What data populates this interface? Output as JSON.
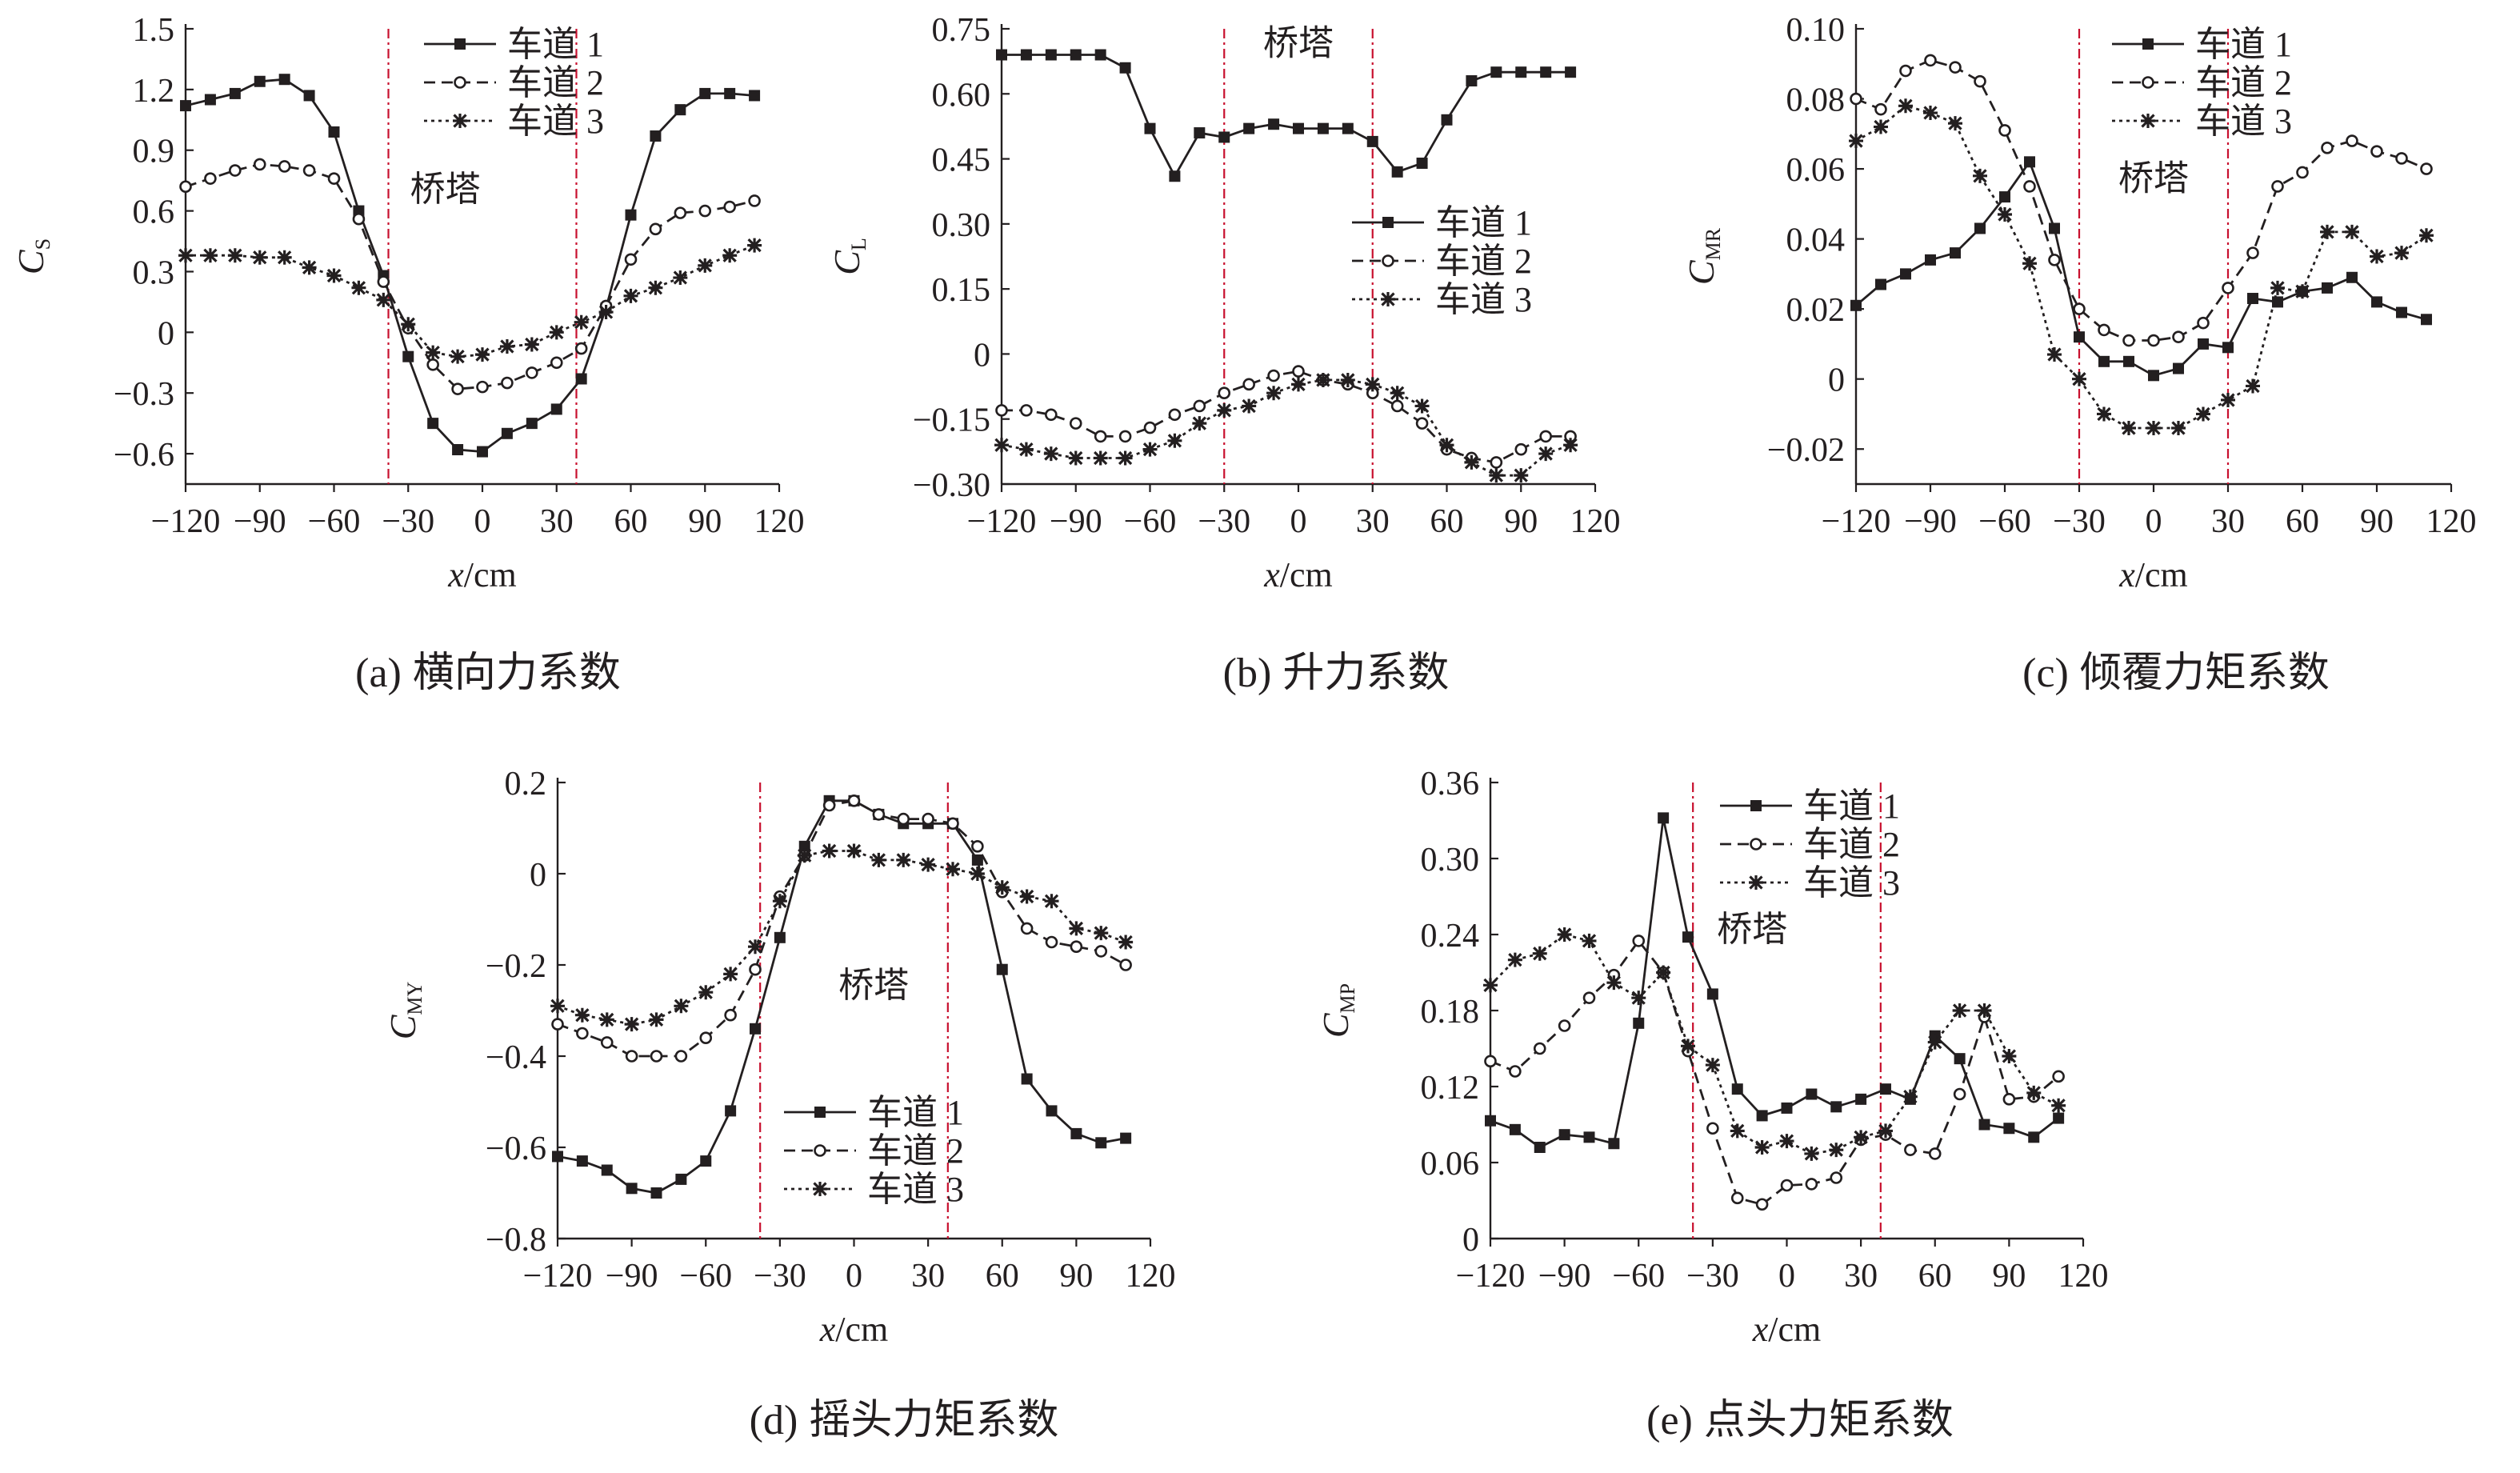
{
  "figure": {
    "panels": [
      {
        "id": "a",
        "caption_letter": "(a)",
        "caption_text": "横向力系数"
      },
      {
        "id": "b",
        "caption_letter": "(b)",
        "caption_text": "升力系数"
      },
      {
        "id": "c",
        "caption_letter": "(c)",
        "caption_text": "倾覆力矩系数"
      },
      {
        "id": "d",
        "caption_letter": "(d)",
        "caption_text": "摇头力矩系数"
      },
      {
        "id": "e",
        "caption_letter": "(e)",
        "caption_text": "点头力矩系数"
      }
    ],
    "tower_label": "桥塔",
    "legend_names": [
      "车道 1",
      "车道 2",
      "车道 3"
    ],
    "x_axis_label": {
      "italic": "x",
      "unit": "/cm"
    },
    "colors": {
      "line": "#231f20",
      "tower_line": "#c8102e",
      "background": "#ffffff"
    }
  },
  "chart_data": [
    {
      "id": "a",
      "type": "line",
      "title": "(a) 横向力系数",
      "xlabel": "x/cm",
      "ylabel": "C_S",
      "ylabel_main": "C",
      "ylabel_sub": "S",
      "xlim": [
        -120,
        120
      ],
      "ylim": [
        -0.75,
        1.5
      ],
      "xticks": [
        -120,
        -90,
        -60,
        -30,
        0,
        30,
        60,
        90,
        120
      ],
      "xtick_labels": [
        "−120",
        "−90",
        "−60",
        "−30",
        "0",
        "30",
        "60",
        "90",
        "120"
      ],
      "yticks": [
        -0.6,
        -0.3,
        0,
        0.3,
        0.6,
        0.9,
        1.2,
        1.5
      ],
      "ytick_labels": [
        "−0.6",
        "−0.3",
        "0",
        "0.3",
        "0.6",
        "0.9",
        "1.2",
        "1.5"
      ],
      "tower_x": [
        -38,
        38
      ],
      "tower_label": "桥塔",
      "tower_label_pos": [
        -15,
        0.65
      ],
      "legend_loc": "top-center",
      "x": [
        -120,
        -110,
        -100,
        -90,
        -80,
        -70,
        -60,
        -50,
        -40,
        -30,
        -20,
        -10,
        0,
        10,
        20,
        30,
        40,
        50,
        60,
        70,
        80,
        90,
        100,
        110
      ],
      "series": [
        {
          "name": "车道 1",
          "marker": "square",
          "dash": "solid",
          "values": [
            1.12,
            1.15,
            1.18,
            1.24,
            1.25,
            1.17,
            0.99,
            0.6,
            0.28,
            -0.12,
            -0.45,
            -0.58,
            -0.59,
            -0.5,
            -0.45,
            -0.38,
            -0.23,
            0.12,
            0.58,
            0.97,
            1.1,
            1.18,
            1.18,
            1.17
          ]
        },
        {
          "name": "车道 2",
          "marker": "circle",
          "dash": "dashed",
          "values": [
            0.72,
            0.76,
            0.8,
            0.83,
            0.82,
            0.8,
            0.76,
            0.56,
            0.25,
            0.02,
            -0.16,
            -0.28,
            -0.27,
            -0.25,
            -0.2,
            -0.15,
            -0.08,
            0.13,
            0.36,
            0.51,
            0.59,
            0.6,
            0.62,
            0.65
          ]
        },
        {
          "name": "车道 3",
          "marker": "star",
          "dash": "dotted",
          "values": [
            0.38,
            0.38,
            0.38,
            0.37,
            0.37,
            0.32,
            0.28,
            0.22,
            0.16,
            0.04,
            -0.1,
            -0.12,
            -0.11,
            -0.07,
            -0.06,
            0.0,
            0.05,
            0.1,
            0.18,
            0.22,
            0.27,
            0.33,
            0.38,
            0.43
          ]
        }
      ]
    },
    {
      "id": "b",
      "type": "line",
      "title": "(b) 升力系数",
      "xlabel": "x/cm",
      "ylabel": "C_L",
      "ylabel_main": "C",
      "ylabel_sub": "L",
      "xlim": [
        -120,
        120
      ],
      "ylim": [
        -0.3,
        0.75
      ],
      "xticks": [
        -120,
        -90,
        -60,
        -30,
        0,
        30,
        60,
        90,
        120
      ],
      "xtick_labels": [
        "−120",
        "−90",
        "−60",
        "−30",
        "0",
        "30",
        "60",
        "90",
        "120"
      ],
      "yticks": [
        -0.3,
        -0.15,
        0,
        0.15,
        0.3,
        0.45,
        0.6,
        0.75
      ],
      "ytick_labels": [
        "−0.30",
        "−0.15",
        "0",
        "0.15",
        "0.30",
        "0.45",
        "0.60",
        "0.75"
      ],
      "tower_x": [
        -30,
        30
      ],
      "tower_label": "桥塔",
      "tower_label_pos": [
        0,
        0.69
      ],
      "legend_loc": "center-right",
      "x": [
        -120,
        -110,
        -100,
        -90,
        -80,
        -70,
        -60,
        -50,
        -40,
        -30,
        -20,
        -10,
        0,
        10,
        20,
        30,
        40,
        50,
        60,
        70,
        80,
        90,
        100,
        110
      ],
      "series": [
        {
          "name": "车道 1",
          "marker": "square",
          "dash": "solid",
          "values": [
            0.69,
            0.69,
            0.69,
            0.69,
            0.69,
            0.66,
            0.52,
            0.41,
            0.51,
            0.5,
            0.52,
            0.53,
            0.52,
            0.52,
            0.52,
            0.49,
            0.42,
            0.44,
            0.54,
            0.63,
            0.65,
            0.65,
            0.65,
            0.65
          ]
        },
        {
          "name": "车道 2",
          "marker": "circle",
          "dash": "dashed",
          "values": [
            -0.13,
            -0.13,
            -0.14,
            -0.16,
            -0.19,
            -0.19,
            -0.17,
            -0.14,
            -0.12,
            -0.09,
            -0.07,
            -0.05,
            -0.04,
            -0.06,
            -0.07,
            -0.09,
            -0.12,
            -0.16,
            -0.22,
            -0.24,
            -0.25,
            -0.22,
            -0.19,
            -0.19
          ]
        },
        {
          "name": "车道 3",
          "marker": "star",
          "dash": "dotted",
          "values": [
            -0.21,
            -0.22,
            -0.23,
            -0.24,
            -0.24,
            -0.24,
            -0.22,
            -0.2,
            -0.16,
            -0.13,
            -0.12,
            -0.09,
            -0.07,
            -0.06,
            -0.06,
            -0.07,
            -0.09,
            -0.12,
            -0.21,
            -0.25,
            -0.28,
            -0.28,
            -0.23,
            -0.21
          ]
        }
      ]
    },
    {
      "id": "c",
      "type": "line",
      "title": "(c) 倾覆力矩系数",
      "xlabel": "x/cm",
      "ylabel": "C_MR",
      "ylabel_main": "C",
      "ylabel_sub": "MR",
      "xlim": [
        -120,
        120
      ],
      "ylim": [
        -0.03,
        0.1
      ],
      "xticks": [
        -120,
        -90,
        -60,
        -30,
        0,
        30,
        60,
        90,
        120
      ],
      "xtick_labels": [
        "−120",
        "−90",
        "−60",
        "−30",
        "0",
        "30",
        "60",
        "90",
        "120"
      ],
      "yticks": [
        -0.02,
        0,
        0.02,
        0.04,
        0.06,
        0.08,
        0.1
      ],
      "ytick_labels": [
        "−0.02",
        "0",
        "0.02",
        "0.04",
        "0.06",
        "0.08",
        "0.10"
      ],
      "tower_x": [
        -30,
        30
      ],
      "tower_label": "桥塔",
      "tower_label_pos": [
        0,
        0.054
      ],
      "legend_loc": "top-right",
      "x": [
        -120,
        -110,
        -100,
        -90,
        -80,
        -70,
        -60,
        -50,
        -40,
        -30,
        -20,
        -10,
        0,
        10,
        20,
        30,
        40,
        50,
        60,
        70,
        80,
        90,
        100,
        110
      ],
      "series": [
        {
          "name": "车道 1",
          "marker": "square",
          "dash": "solid",
          "values": [
            0.021,
            0.027,
            0.03,
            0.034,
            0.036,
            0.043,
            0.052,
            0.062,
            0.043,
            0.012,
            0.005,
            0.005,
            0.001,
            0.003,
            0.01,
            0.009,
            0.023,
            0.022,
            0.025,
            0.026,
            0.029,
            0.022,
            0.019,
            0.017
          ]
        },
        {
          "name": "车道 2",
          "marker": "circle",
          "dash": "dashed",
          "values": [
            0.08,
            0.077,
            0.088,
            0.091,
            0.089,
            0.085,
            0.071,
            0.055,
            0.034,
            0.02,
            0.014,
            0.011,
            0.011,
            0.012,
            0.016,
            0.026,
            0.036,
            0.055,
            0.059,
            0.066,
            0.068,
            0.065,
            0.063,
            0.06
          ]
        },
        {
          "name": "车道 3",
          "marker": "star",
          "dash": "dotted",
          "values": [
            0.068,
            0.072,
            0.078,
            0.076,
            0.073,
            0.058,
            0.047,
            0.033,
            0.007,
            0.0,
            -0.01,
            -0.014,
            -0.014,
            -0.014,
            -0.01,
            -0.006,
            -0.002,
            0.026,
            0.025,
            0.042,
            0.042,
            0.035,
            0.036,
            0.041
          ]
        }
      ]
    },
    {
      "id": "d",
      "type": "line",
      "title": "(d) 摇头力矩系数",
      "xlabel": "x/cm",
      "ylabel": "C_MY",
      "ylabel_main": "C",
      "ylabel_sub": "MY",
      "xlim": [
        -120,
        120
      ],
      "ylim": [
        -0.8,
        0.2
      ],
      "xticks": [
        -120,
        -90,
        -60,
        -30,
        0,
        30,
        60,
        90,
        120
      ],
      "xtick_labels": [
        "−120",
        "−90",
        "−60",
        "−30",
        "0",
        "30",
        "60",
        "90",
        "120"
      ],
      "yticks": [
        -0.8,
        -0.6,
        -0.4,
        -0.2,
        0,
        0.2
      ],
      "ytick_labels": [
        "−0.8",
        "−0.6",
        "−0.4",
        "−0.2",
        "0",
        "0.2"
      ],
      "tower_x": [
        -38,
        38
      ],
      "tower_label": "桥塔",
      "tower_label_pos": [
        8,
        -0.27
      ],
      "legend_loc": "bottom-center",
      "x": [
        -120,
        -110,
        -100,
        -90,
        -80,
        -70,
        -60,
        -50,
        -40,
        -30,
        -20,
        -10,
        0,
        10,
        20,
        30,
        40,
        50,
        60,
        70,
        80,
        90,
        100,
        110
      ],
      "series": [
        {
          "name": "车道 1",
          "marker": "square",
          "dash": "solid",
          "values": [
            -0.62,
            -0.63,
            -0.65,
            -0.69,
            -0.7,
            -0.67,
            -0.63,
            -0.52,
            -0.34,
            -0.14,
            0.06,
            0.16,
            0.16,
            0.13,
            0.11,
            0.11,
            0.11,
            0.03,
            -0.21,
            -0.45,
            -0.52,
            -0.57,
            -0.59,
            -0.58
          ]
        },
        {
          "name": "车道 2",
          "marker": "circle",
          "dash": "dashed",
          "values": [
            -0.33,
            -0.35,
            -0.37,
            -0.4,
            -0.4,
            -0.4,
            -0.36,
            -0.31,
            -0.21,
            -0.05,
            0.04,
            0.15,
            0.16,
            0.13,
            0.12,
            0.12,
            0.11,
            0.06,
            -0.04,
            -0.12,
            -0.15,
            -0.16,
            -0.17,
            -0.2
          ]
        },
        {
          "name": "车道 3",
          "marker": "star",
          "dash": "dotted",
          "values": [
            -0.29,
            -0.31,
            -0.32,
            -0.33,
            -0.32,
            -0.29,
            -0.26,
            -0.22,
            -0.16,
            -0.06,
            0.04,
            0.05,
            0.05,
            0.03,
            0.03,
            0.02,
            0.01,
            0.0,
            -0.03,
            -0.05,
            -0.06,
            -0.12,
            -0.13,
            -0.15
          ]
        }
      ]
    },
    {
      "id": "e",
      "type": "line",
      "title": "(e) 点头力矩系数",
      "xlabel": "x/cm",
      "ylabel": "C_MP",
      "ylabel_main": "C",
      "ylabel_sub": "MP",
      "xlim": [
        -120,
        120
      ],
      "ylim": [
        0,
        0.36
      ],
      "xticks": [
        -120,
        -90,
        -60,
        -30,
        0,
        30,
        60,
        90,
        120
      ],
      "xtick_labels": [
        "−120",
        "−90",
        "−60",
        "−30",
        "0",
        "30",
        "60",
        "90",
        "120"
      ],
      "yticks": [
        0,
        0.06,
        0.12,
        0.18,
        0.24,
        0.3,
        0.36
      ],
      "ytick_labels": [
        "0",
        "0.06",
        "0.12",
        "0.18",
        "0.24",
        "0.30",
        "0.36"
      ],
      "tower_x": [
        -38,
        38
      ],
      "tower_label": "桥塔",
      "tower_label_pos": [
        -14,
        0.235
      ],
      "legend_loc": "top-center",
      "x": [
        -120,
        -110,
        -100,
        -90,
        -80,
        -70,
        -60,
        -50,
        -40,
        -30,
        -20,
        -10,
        0,
        10,
        20,
        30,
        40,
        50,
        60,
        70,
        80,
        90,
        100,
        110
      ],
      "series": [
        {
          "name": "车道 1",
          "marker": "square",
          "dash": "solid",
          "values": [
            0.093,
            0.086,
            0.072,
            0.082,
            0.08,
            0.075,
            0.17,
            0.332,
            0.238,
            0.193,
            0.118,
            0.097,
            0.103,
            0.114,
            0.104,
            0.11,
            0.118,
            0.11,
            0.16,
            0.142,
            0.09,
            0.087,
            0.08,
            0.095
          ]
        },
        {
          "name": "车道 2",
          "marker": "circle",
          "dash": "dashed",
          "values": [
            0.14,
            0.132,
            0.15,
            0.168,
            0.19,
            0.208,
            0.235,
            0.21,
            0.148,
            0.087,
            0.032,
            0.027,
            0.042,
            0.043,
            0.048,
            0.078,
            0.082,
            0.07,
            0.067,
            0.114,
            0.175,
            0.11,
            0.112,
            0.128
          ]
        },
        {
          "name": "车道 3",
          "marker": "star",
          "dash": "dotted",
          "values": [
            0.2,
            0.22,
            0.225,
            0.24,
            0.235,
            0.202,
            0.19,
            0.21,
            0.152,
            0.137,
            0.085,
            0.072,
            0.077,
            0.067,
            0.07,
            0.08,
            0.085,
            0.112,
            0.155,
            0.18,
            0.18,
            0.144,
            0.115,
            0.105
          ]
        }
      ]
    }
  ]
}
